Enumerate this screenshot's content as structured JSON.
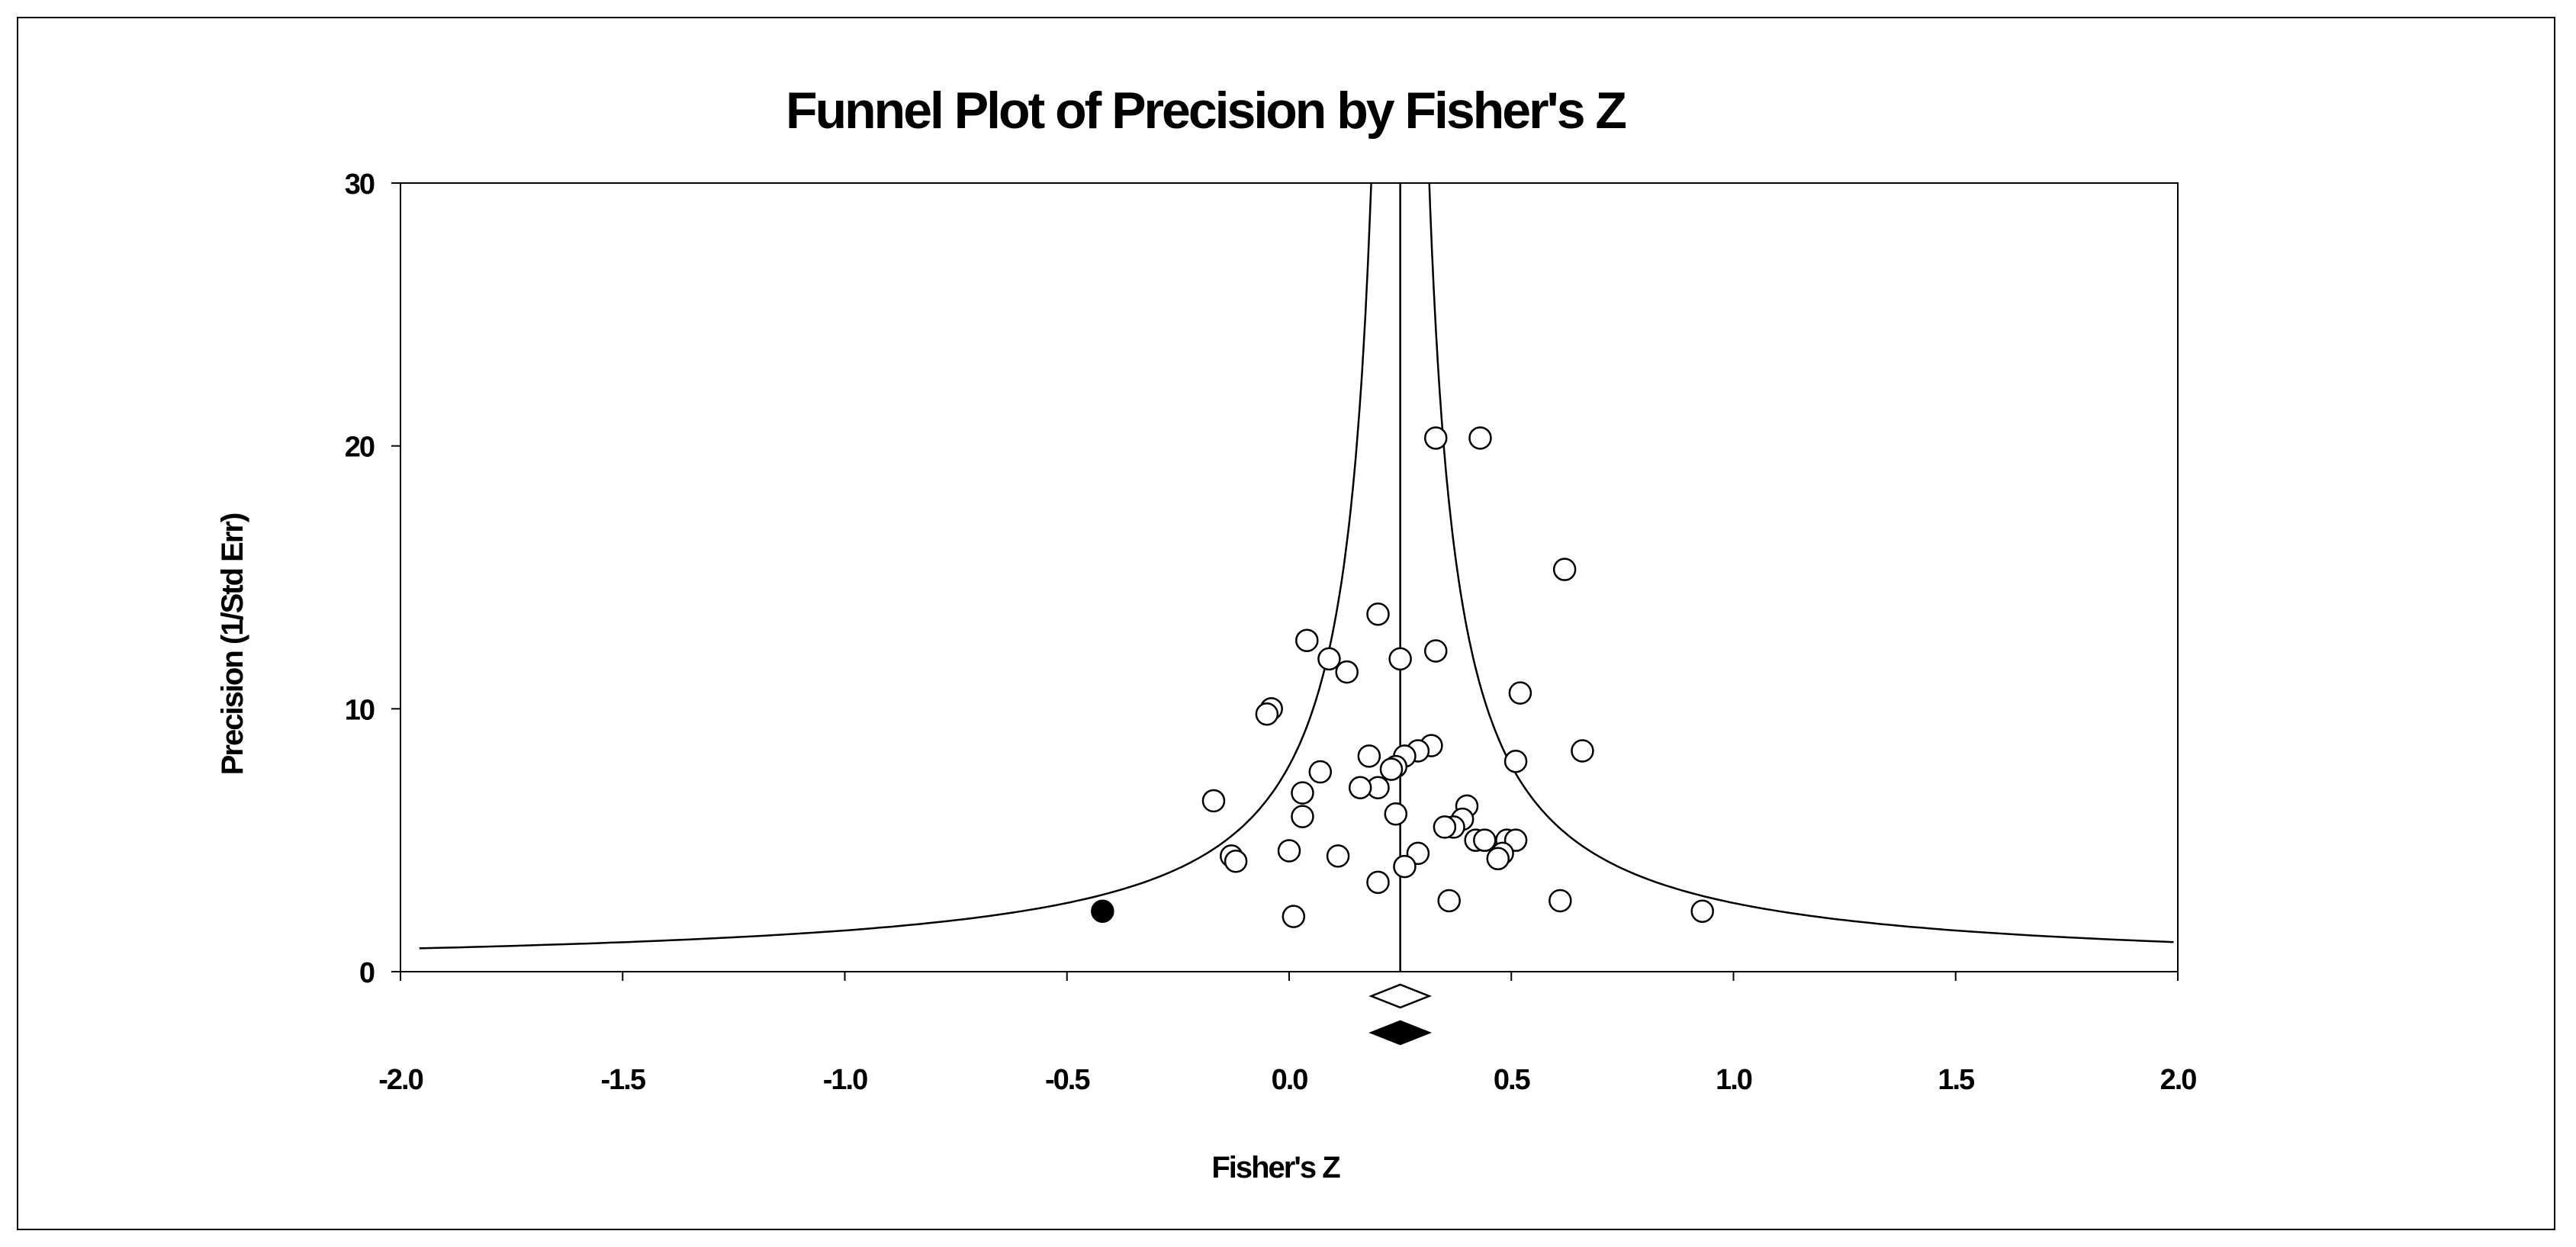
{
  "chart_data": {
    "type": "scatter",
    "title": "Funnel Plot of Precision by Fisher's Z",
    "xlabel": "Fisher's Z",
    "ylabel": "Precision (1/Std Err)",
    "xlim": [
      -2.0,
      2.0
    ],
    "ylim": [
      0,
      30
    ],
    "x_ticks": [
      "-2.0",
      "-1.5",
      "-1.0",
      "-0.5",
      "0.0",
      "0.5",
      "1.0",
      "1.5",
      "2.0"
    ],
    "y_ticks": [
      "0",
      "10",
      "20",
      "30"
    ],
    "x_tick_values": [
      -2.0,
      -1.5,
      -1.0,
      -0.5,
      0.0,
      0.5,
      1.0,
      1.5,
      2.0
    ],
    "y_tick_values": [
      0,
      10,
      20,
      30
    ],
    "grid": false,
    "funnel_center": 0.25,
    "summary_observed": 0.25,
    "summary_imputed": 0.25,
    "colors": {
      "observed": "#ffffff",
      "imputed": "#000000",
      "line": "#000000"
    },
    "series": [
      {
        "marker": "open-circle",
        "points": [
          [
            0.33,
            20.3
          ],
          [
            0.43,
            20.3
          ],
          [
            0.62,
            15.3
          ],
          [
            0.2,
            13.6
          ],
          [
            0.04,
            12.6
          ],
          [
            0.33,
            12.2
          ],
          [
            0.09,
            11.9
          ],
          [
            0.25,
            11.9
          ],
          [
            0.13,
            11.4
          ],
          [
            0.52,
            10.6
          ],
          [
            -0.04,
            10.0
          ],
          [
            -0.05,
            9.8
          ],
          [
            0.32,
            8.6
          ],
          [
            0.29,
            8.4
          ],
          [
            0.66,
            8.4
          ],
          [
            0.26,
            8.2
          ],
          [
            0.18,
            8.2
          ],
          [
            0.51,
            8.0
          ],
          [
            0.24,
            7.8
          ],
          [
            0.23,
            7.7
          ],
          [
            0.07,
            7.6
          ],
          [
            0.2,
            7.0
          ],
          [
            0.16,
            7.0
          ],
          [
            0.03,
            6.8
          ],
          [
            -0.17,
            6.5
          ],
          [
            0.4,
            6.3
          ],
          [
            0.24,
            6.0
          ],
          [
            0.03,
            5.9
          ],
          [
            0.39,
            5.8
          ],
          [
            0.37,
            5.5
          ],
          [
            0.35,
            5.5
          ],
          [
            0.42,
            5.0
          ],
          [
            0.44,
            5.0
          ],
          [
            0.49,
            5.0
          ],
          [
            0.51,
            5.0
          ],
          [
            0.0,
            4.6
          ],
          [
            0.29,
            4.5
          ],
          [
            0.48,
            4.5
          ],
          [
            0.11,
            4.4
          ],
          [
            -0.13,
            4.4
          ],
          [
            0.47,
            4.3
          ],
          [
            -0.12,
            4.2
          ],
          [
            0.26,
            4.0
          ],
          [
            0.2,
            3.4
          ],
          [
            0.36,
            2.7
          ],
          [
            0.61,
            2.7
          ],
          [
            0.93,
            2.3
          ],
          [
            0.01,
            2.1
          ]
        ]
      },
      {
        "marker": "filled-circle",
        "points": [
          [
            -0.42,
            2.3
          ]
        ]
      }
    ]
  }
}
